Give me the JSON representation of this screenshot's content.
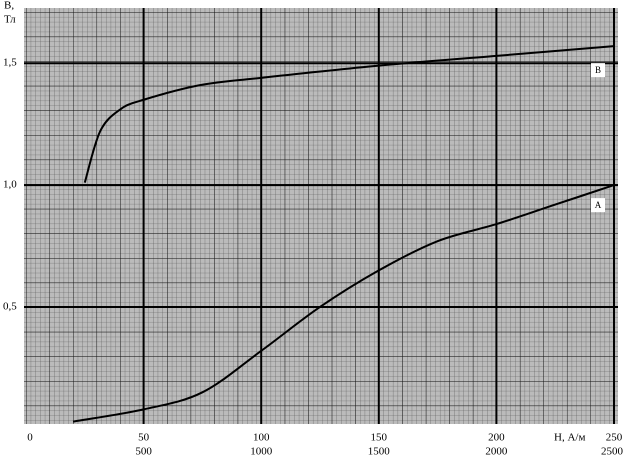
{
  "chart_data": {
    "type": "line",
    "ylabel": [
      "В,",
      "Тл"
    ],
    "xlabel": "Н, А/м",
    "xlim": [
      0,
      250
    ],
    "xticks": [
      0,
      50,
      100,
      150,
      200,
      250
    ],
    "x2lim": [
      0,
      2500
    ],
    "x2ticks": [
      500,
      1000,
      1500,
      2000,
      2500
    ],
    "ylim": [
      0.02,
      1.71
    ],
    "yticks": [
      {
        "value": 0.5,
        "label": "0,5"
      },
      {
        "value": 1.0,
        "label": "1,0"
      },
      {
        "value": 1.5,
        "label": "1,5"
      }
    ],
    "grid": true,
    "series": [
      {
        "name": "А",
        "color": "#000000",
        "axis": "x",
        "x": [
          20,
          50,
          75,
          100,
          125,
          150,
          175,
          200,
          225,
          250
        ],
        "values": [
          0.03,
          0.08,
          0.15,
          0.32,
          0.5,
          0.65,
          0.77,
          0.84,
          0.92,
          1.0
        ]
      },
      {
        "name": "В",
        "color": "#000000",
        "axis": "x2",
        "x": [
          250,
          315,
          400,
          500,
          740,
          1000,
          1500,
          2000,
          2500
        ],
        "values": [
          1.01,
          1.22,
          1.31,
          1.35,
          1.41,
          1.44,
          1.49,
          1.53,
          1.57
        ]
      }
    ]
  }
}
